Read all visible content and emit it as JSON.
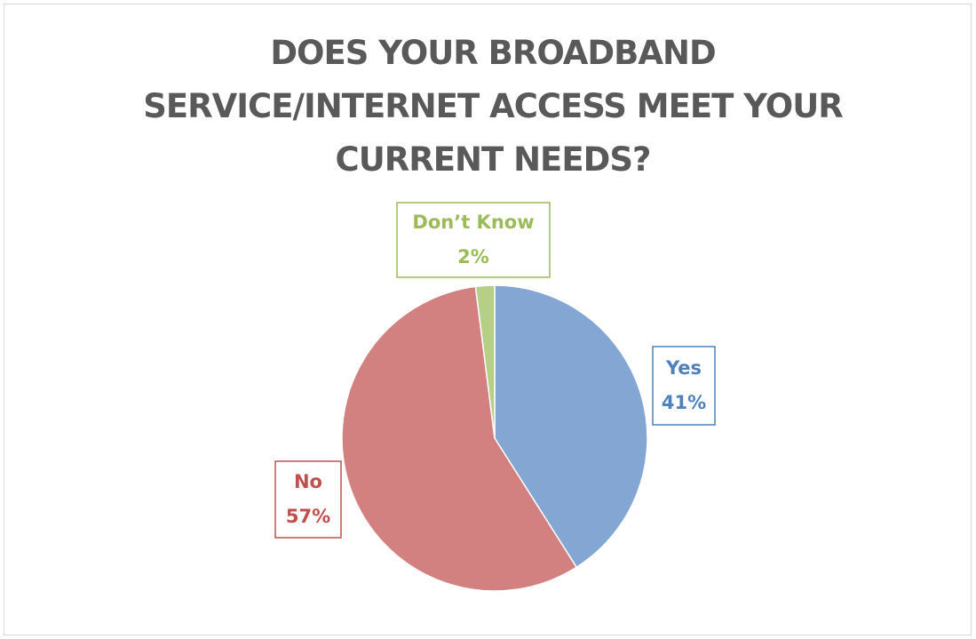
{
  "chart_data": {
    "type": "pie",
    "title": "DOES YOUR BROADBAND SERVICE/INTERNET ACCESS MEET YOUR CURRENT NEEDS?",
    "categories": [
      "Yes",
      "No",
      "Don’t Know"
    ],
    "values": [
      41,
      57,
      2
    ],
    "value_labels": [
      "41%",
      "57%",
      "2%"
    ],
    "colors": [
      "#84a6d3",
      "#d38180",
      "#b5cf86"
    ],
    "label_colors": [
      "#4f81bd",
      "#c0504d",
      "#9bbb59"
    ]
  }
}
